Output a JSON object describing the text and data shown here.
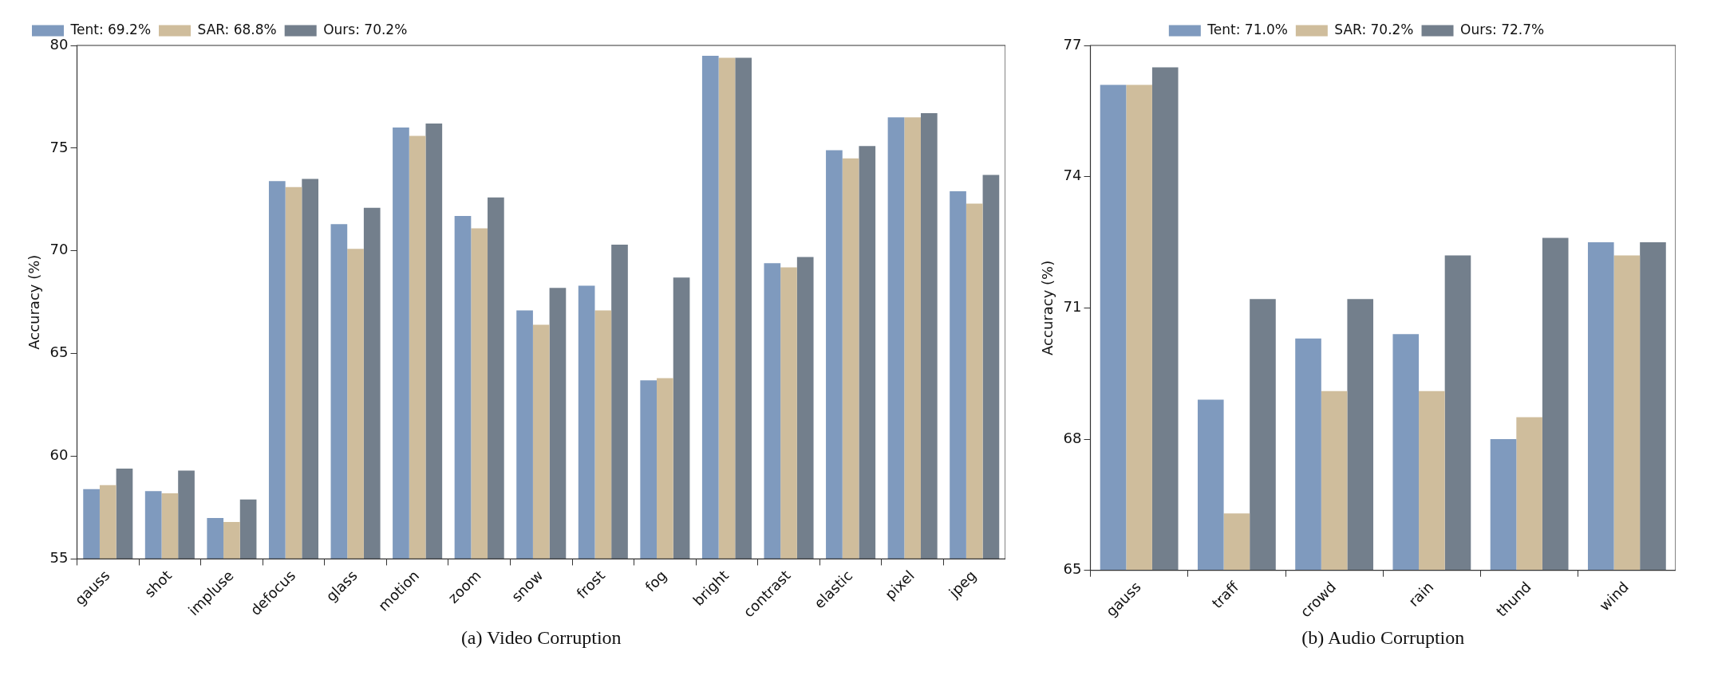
{
  "chart_data": [
    {
      "type": "bar",
      "xlabel": "(a) Video Corruption",
      "ylabel": "Accuracy (%)",
      "categories": [
        "gauss",
        "shot",
        "impluse",
        "defocus",
        "glass",
        "motion",
        "zoom",
        "snow",
        "frost",
        "fog",
        "bright",
        "contrast",
        "elastic",
        "pixel",
        "jpeg"
      ],
      "series": [
        {
          "name": "Tent: 69.2%",
          "color": "#7f9abe",
          "values": [
            58.4,
            58.3,
            57.0,
            73.4,
            71.3,
            76.0,
            71.7,
            67.1,
            68.3,
            63.7,
            79.5,
            69.4,
            74.9,
            76.5,
            72.9
          ]
        },
        {
          "name": "SAR: 68.8%",
          "color": "#cfbd9c",
          "values": [
            58.6,
            58.2,
            56.8,
            73.1,
            70.1,
            75.6,
            71.1,
            66.4,
            67.1,
            63.8,
            79.4,
            69.2,
            74.5,
            76.5,
            72.3
          ]
        },
        {
          "name": "Ours: 70.2%",
          "color": "#737f8c",
          "values": [
            59.4,
            59.3,
            57.9,
            73.5,
            72.1,
            76.2,
            72.6,
            68.2,
            70.3,
            68.7,
            79.4,
            69.7,
            75.1,
            76.7,
            73.7
          ]
        }
      ],
      "ylim": [
        55,
        80
      ],
      "yticks": [
        55,
        60,
        65,
        70,
        75,
        80
      ],
      "legend": "top left"
    },
    {
      "type": "bar",
      "xlabel": "(b) Audio Corruption",
      "ylabel": "Accuracy (%)",
      "categories": [
        "gauss",
        "traff",
        "crowd",
        "rain",
        "thund",
        "wind"
      ],
      "series": [
        {
          "name": "Tent: 71.0%",
          "color": "#7f9abe",
          "values": [
            76.1,
            68.9,
            70.3,
            70.4,
            68.0,
            72.5
          ]
        },
        {
          "name": "SAR: 70.2%",
          "color": "#cfbd9c",
          "values": [
            76.1,
            66.3,
            69.1,
            69.1,
            68.5,
            72.2
          ]
        },
        {
          "name": "Ours: 72.7%",
          "color": "#737f8c",
          "values": [
            76.5,
            71.2,
            71.2,
            72.2,
            72.6,
            72.5
          ]
        }
      ],
      "ylim": [
        65,
        77
      ],
      "yticks": [
        65,
        68,
        71,
        74,
        77
      ],
      "legend": "top"
    }
  ]
}
